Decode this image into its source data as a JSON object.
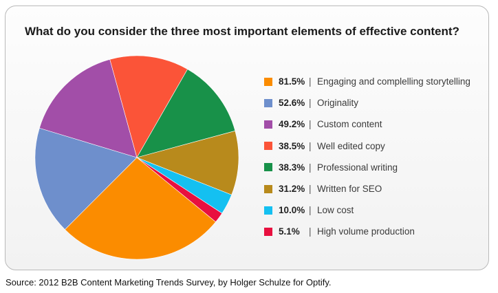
{
  "chart_data": {
    "type": "pie",
    "title": "What do you consider the three most important elements of effective content?",
    "slices": [
      {
        "label": "Engaging and complelling storytelling",
        "value": 81.5,
        "value_label": "81.5%",
        "color": "#fb8c00"
      },
      {
        "label": "Originality",
        "value": 52.6,
        "value_label": "52.6%",
        "color": "#6e8fcc"
      },
      {
        "label": "Custom content",
        "value": 49.2,
        "value_label": "49.2%",
        "color": "#a24ea8"
      },
      {
        "label": "Well edited copy",
        "value": 38.5,
        "value_label": "38.5%",
        "color": "#fb5438"
      },
      {
        "label": "Professional writing",
        "value": 38.3,
        "value_label": "38.3%",
        "color": "#189149"
      },
      {
        "label": "Written for SEO",
        "value": 31.2,
        "value_label": "31.2%",
        "color": "#b88a1c"
      },
      {
        "label": "Low cost",
        "value": 10.0,
        "value_label": "10.0%",
        "color": "#14c0f1"
      },
      {
        "label": "High volume production",
        "value": 5.1,
        "value_label": "5.1%",
        "color": "#e8103f"
      }
    ],
    "legend_position": "right",
    "separator": "|"
  },
  "source": "Source: 2012 B2B Content Marketing Trends Survey, by Holger Schulze for Optify."
}
